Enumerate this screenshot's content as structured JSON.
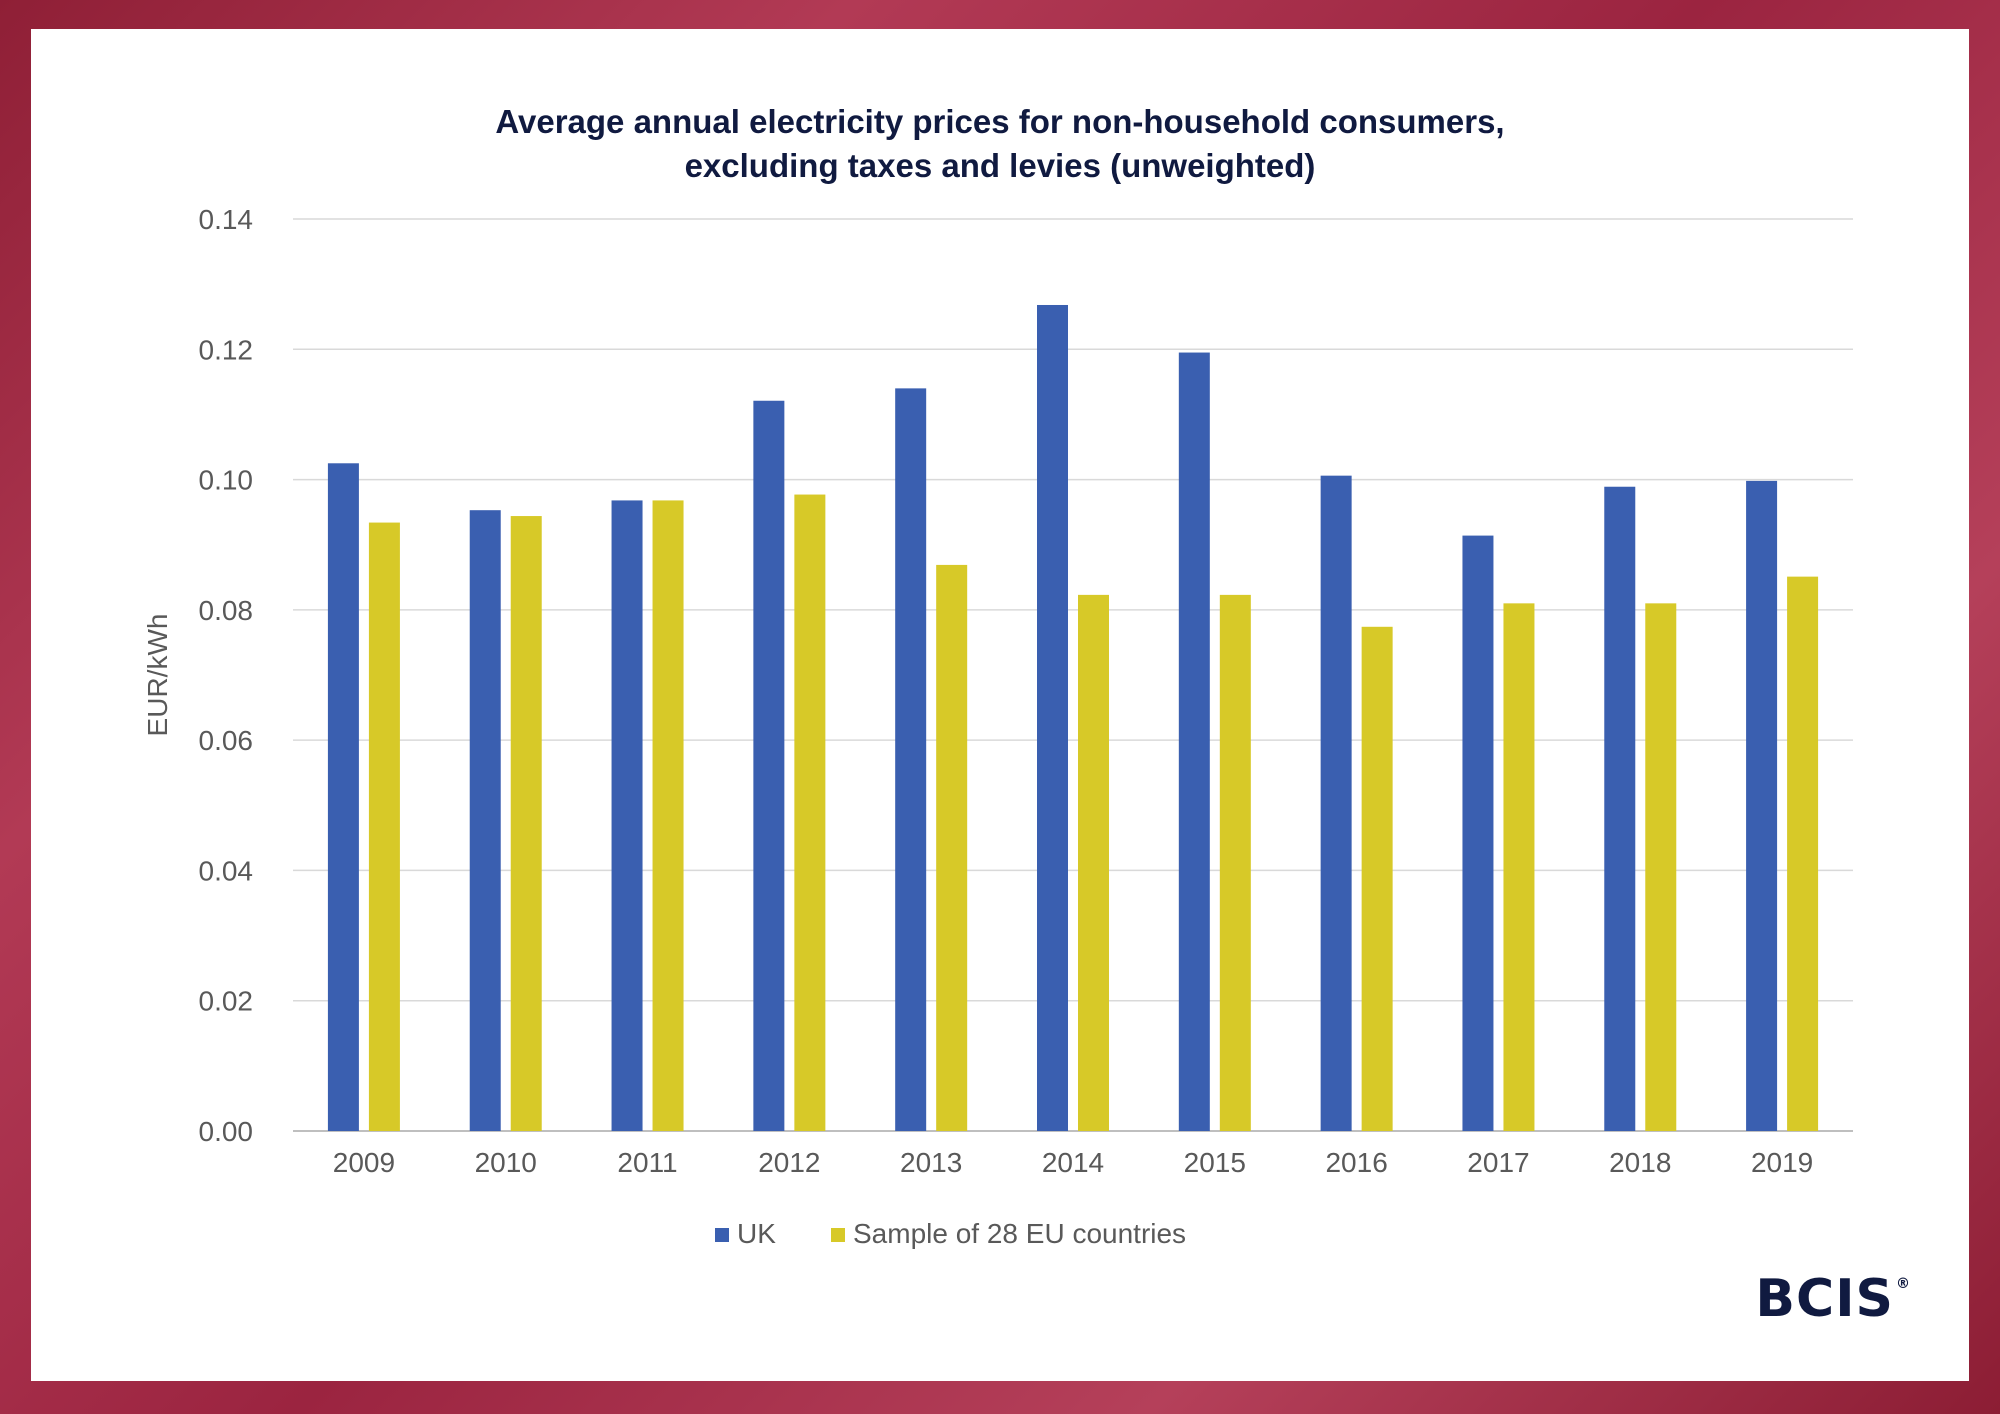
{
  "colors": {
    "uk": "#3a5fb0",
    "eu": "#d7c928",
    "grid": "#d9d9d9",
    "axis_text": "#595959",
    "title": "#101a40"
  },
  "logo": {
    "text": "BCIS",
    "mark": "®"
  },
  "chart_data": {
    "type": "bar",
    "title_lines": [
      "Average annual electricity prices for non-household consumers,",
      "excluding taxes and levies (unweighted)"
    ],
    "xlabel": "",
    "ylabel": "EUR/kWh",
    "ylim": [
      0,
      0.14
    ],
    "yticks": [
      "0.00",
      "0.02",
      "0.04",
      "0.06",
      "0.08",
      "0.10",
      "0.12",
      "0.14"
    ],
    "grid": true,
    "legend": "bottom",
    "categories": [
      "2009",
      "2010",
      "2011",
      "2012",
      "2013",
      "2014",
      "2015",
      "2016",
      "2017",
      "2018",
      "2019"
    ],
    "series": [
      {
        "name": "UK",
        "values": [
          0.1025,
          0.0953,
          0.0968,
          0.1121,
          0.114,
          0.1268,
          0.1195,
          0.1006,
          0.0914,
          0.0989,
          0.0998
        ]
      },
      {
        "name": "Sample of 28 EU countries",
        "values": [
          0.0934,
          0.0944,
          0.0968,
          0.0977,
          0.0869,
          0.0823,
          0.0823,
          0.0774,
          0.081,
          0.081,
          0.0851
        ]
      }
    ]
  }
}
